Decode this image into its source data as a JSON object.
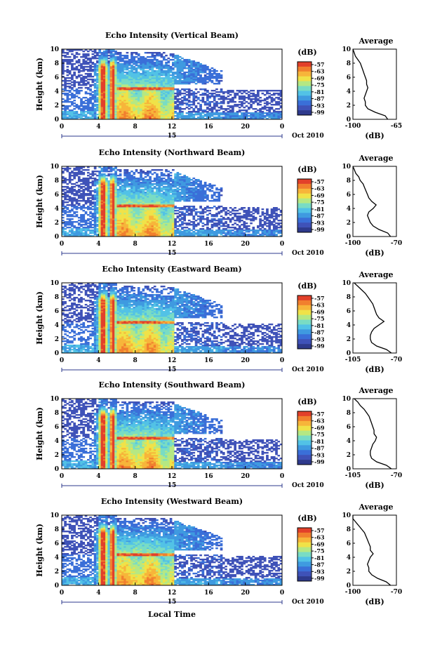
{
  "colors": {
    "scale": [
      "#2e3a8c",
      "#3f52b8",
      "#3a6fd8",
      "#3f9ae0",
      "#52c2e6",
      "#79dcc4",
      "#b5e883",
      "#f0e248",
      "#f7b53a",
      "#f17f2e",
      "#e2402a"
    ]
  },
  "figure": {
    "xlabel": "Local Time",
    "date_label": "Oct 2010",
    "day_label": "15"
  },
  "chart_data": [
    {
      "type": "heatmap",
      "title": "Echo Intensity (Vertical Beam)",
      "ylabel": "Height (km)",
      "xlim": [
        0,
        24
      ],
      "ylim": [
        0,
        10
      ],
      "xticks": [
        "0",
        "4",
        "8",
        "12",
        "16",
        "20",
        "0"
      ],
      "yticks": [
        "0",
        "2",
        "4",
        "6",
        "8",
        "10"
      ],
      "colorbar": {
        "label": "(dB)",
        "ticks": [
          "-57",
          "-63",
          "-69",
          "-75",
          "-81",
          "-87",
          "-93",
          "-99"
        ]
      },
      "features": {
        "convective_cores_h": [
          4.5,
          5.6
        ],
        "stratiform_h": [
          6,
          12
        ],
        "bright_band_km": 4.3,
        "anvil_end_h": 17
      },
      "profile": {
        "title": "Average",
        "xlabel": "(dB)",
        "xlim": [
          -100,
          -65
        ],
        "xticks": [
          "-100",
          "-65"
        ],
        "height": [
          0,
          0.5,
          1,
          1.5,
          2,
          2.5,
          3,
          3.5,
          4,
          4.5,
          5,
          5.5,
          6,
          6.5,
          7,
          7.5,
          8,
          8.5,
          9,
          9.5,
          10
        ],
        "value": [
          -72,
          -74,
          -82,
          -88,
          -90,
          -90,
          -91,
          -90,
          -89,
          -88,
          -89,
          -89,
          -90,
          -91,
          -92,
          -93,
          -94,
          -96,
          -98,
          -99,
          -100
        ]
      }
    },
    {
      "type": "heatmap",
      "title": "Echo Intensity (Northward Beam)",
      "ylabel": "Height (km)",
      "xlim": [
        0,
        24
      ],
      "ylim": [
        0,
        10
      ],
      "xticks": [
        "0",
        "4",
        "8",
        "12",
        "16",
        "20",
        "0"
      ],
      "yticks": [
        "0",
        "2",
        "4",
        "6",
        "8",
        "10"
      ],
      "colorbar": {
        "label": "(dB)",
        "ticks": [
          "-57",
          "-63",
          "-69",
          "-75",
          "-81",
          "-87",
          "-93",
          "-99"
        ]
      },
      "features": {
        "convective_cores_h": [
          4.5,
          5.6
        ],
        "stratiform_h": [
          6,
          12
        ],
        "bright_band_km": 4.3,
        "anvil_end_h": 17
      },
      "profile": {
        "title": "Average",
        "xlabel": "(dB)",
        "xlim": [
          -100,
          -70
        ],
        "xticks": [
          "-100",
          "-70"
        ],
        "height": [
          0,
          0.5,
          1,
          1.5,
          2,
          2.5,
          3,
          3.5,
          4,
          4.5,
          5,
          5.5,
          6,
          6.5,
          7,
          7.5,
          8,
          8.5,
          9,
          9.5,
          10
        ],
        "value": [
          -74,
          -76,
          -82,
          -86,
          -88,
          -89,
          -90,
          -89,
          -86,
          -84,
          -87,
          -89,
          -90,
          -91,
          -92,
          -93,
          -95,
          -96,
          -98,
          -99,
          -100
        ]
      }
    },
    {
      "type": "heatmap",
      "title": "Echo Intensity (Eastward Beam)",
      "ylabel": "Height (km)",
      "xlim": [
        0,
        24
      ],
      "ylim": [
        0,
        10
      ],
      "xticks": [
        "0",
        "4",
        "8",
        "12",
        "16",
        "20",
        "0"
      ],
      "yticks": [
        "0",
        "2",
        "4",
        "6",
        "8",
        "10"
      ],
      "colorbar": {
        "label": "(dB)",
        "ticks": [
          "-57",
          "-63",
          "-69",
          "-75",
          "-81",
          "-87",
          "-93",
          "-99"
        ]
      },
      "features": {
        "convective_cores_h": [
          4.5,
          5.6
        ],
        "stratiform_h": [
          6,
          12
        ],
        "bright_band_km": 4.3,
        "anvil_end_h": 17
      },
      "profile": {
        "title": "Average",
        "xlabel": "(dB)",
        "xlim": [
          -105,
          -70
        ],
        "xticks": [
          "-105",
          "-70"
        ],
        "height": [
          0,
          0.5,
          1,
          1.5,
          2,
          2.5,
          3,
          3.5,
          4,
          4.5,
          5,
          5.5,
          6,
          6.5,
          7,
          7.5,
          8,
          8.5,
          9,
          9.5,
          10
        ],
        "value": [
          -74,
          -78,
          -86,
          -90,
          -91,
          -91,
          -90,
          -88,
          -84,
          -80,
          -84,
          -86,
          -87,
          -88,
          -89,
          -91,
          -93,
          -95,
          -98,
          -101,
          -104
        ]
      }
    },
    {
      "type": "heatmap",
      "title": "Echo Intensity (Southward Beam)",
      "ylabel": "Height (km)",
      "xlim": [
        0,
        24
      ],
      "ylim": [
        0,
        10
      ],
      "xticks": [
        "0",
        "4",
        "8",
        "12",
        "16",
        "20",
        "0"
      ],
      "yticks": [
        "0",
        "2",
        "4",
        "6",
        "8",
        "10"
      ],
      "colorbar": {
        "label": "(dB)",
        "ticks": [
          "-57",
          "-63",
          "-69",
          "-75",
          "-81",
          "-87",
          "-93",
          "-99"
        ]
      },
      "features": {
        "convective_cores_h": [
          4.5,
          5.6
        ],
        "stratiform_h": [
          6,
          12
        ],
        "bright_band_km": 4.3,
        "anvil_end_h": 17
      },
      "profile": {
        "title": "Average",
        "xlabel": "(dB)",
        "xlim": [
          -105,
          -70
        ],
        "xticks": [
          "-105",
          "-70"
        ],
        "height": [
          0,
          0.5,
          1,
          1.5,
          2,
          2.5,
          3,
          3.5,
          4,
          4.5,
          5,
          5.5,
          6,
          6.5,
          7,
          7.5,
          8,
          8.5,
          9,
          9.5,
          10
        ],
        "value": [
          -74,
          -78,
          -86,
          -90,
          -91,
          -91,
          -90,
          -89,
          -87,
          -86,
          -88,
          -88,
          -89,
          -90,
          -91,
          -92,
          -94,
          -96,
          -99,
          -101,
          -104
        ]
      }
    },
    {
      "type": "heatmap",
      "title": "Echo Intensity (Westward Beam)",
      "ylabel": "Height (km)",
      "xlim": [
        0,
        24
      ],
      "ylim": [
        0,
        10
      ],
      "xticks": [
        "0",
        "4",
        "8",
        "12",
        "16",
        "20",
        "0"
      ],
      "yticks": [
        "0",
        "2",
        "4",
        "6",
        "8",
        "10"
      ],
      "colorbar": {
        "label": "(dB)",
        "ticks": [
          "-57",
          "-63",
          "-69",
          "-75",
          "-81",
          "-87",
          "-93",
          "-99"
        ]
      },
      "features": {
        "convective_cores_h": [
          4.5,
          5.6
        ],
        "stratiform_h": [
          6,
          12
        ],
        "bright_band_km": 4.3,
        "anvil_end_h": 17
      },
      "profile": {
        "title": "Average",
        "xlabel": "(dB)",
        "xlim": [
          -100,
          -70
        ],
        "xticks": [
          "-100",
          "-70"
        ],
        "height": [
          0,
          0.5,
          1,
          1.5,
          2,
          2.5,
          3,
          3.5,
          4,
          4.5,
          5,
          5.5,
          6,
          6.5,
          7,
          7.5,
          8,
          8.5,
          9,
          9.5,
          10
        ],
        "value": [
          -74,
          -77,
          -83,
          -87,
          -89,
          -89,
          -90,
          -89,
          -88,
          -86,
          -88,
          -88,
          -89,
          -90,
          -91,
          -92,
          -94,
          -96,
          -98,
          -100,
          -100
        ]
      }
    }
  ]
}
